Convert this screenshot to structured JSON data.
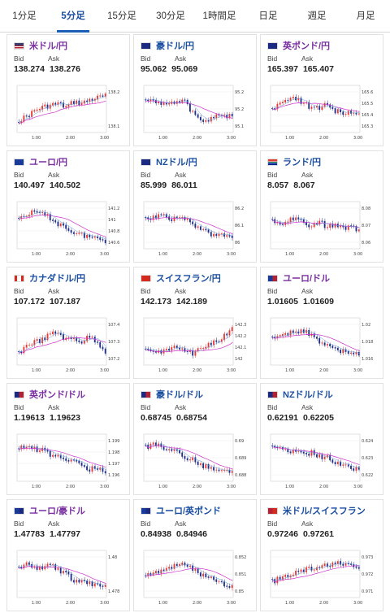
{
  "tabs": [
    {
      "label": "1分足",
      "active": false
    },
    {
      "label": "5分足",
      "active": true
    },
    {
      "label": "15分足",
      "active": false
    },
    {
      "label": "30分足",
      "active": false
    },
    {
      "label": "1時間足",
      "active": false
    },
    {
      "label": "日足",
      "active": false
    },
    {
      "label": "週足",
      "active": false
    },
    {
      "label": "月足",
      "active": false
    }
  ],
  "labels": {
    "bid": "Bid",
    "ask": "Ask"
  },
  "colors": {
    "up": "#e53935",
    "down": "#1e2e8a",
    "ma": "#cc33cc",
    "pair_blue": "#1a4ea0",
    "pair_violet": "#7a2fa0"
  },
  "cards": [
    {
      "pair": "米ドル/円",
      "flag": "us",
      "bid": "138.274",
      "ask": "138.276",
      "violet": true,
      "chart_data": {
        "type": "candlestick",
        "x_ticks": [
          "1:00",
          "2:00",
          "3:00"
        ],
        "y_ticks": [
          "138.2",
          "138.1"
        ]
      }
    },
    {
      "pair": "豪ドル/円",
      "flag": "au",
      "bid": "95.062",
      "ask": "95.069",
      "violet": false,
      "chart_data": {
        "type": "candlestick",
        "x_ticks": [
          "1:00",
          "2:00",
          "3:00"
        ],
        "y_ticks": [
          "95.2",
          "95.2",
          "95.1"
        ]
      }
    },
    {
      "pair": "英ポンド/円",
      "flag": "uk",
      "bid": "165.397",
      "ask": "165.407",
      "violet": true,
      "chart_data": {
        "type": "candlestick",
        "x_ticks": [
          "1:00",
          "2:00",
          "3:00"
        ],
        "y_ticks": [
          "165.6",
          "165.5",
          "165.4",
          "165.3"
        ]
      }
    },
    {
      "pair": "ユーロ/円",
      "flag": "eu",
      "bid": "140.497",
      "ask": "140.502",
      "violet": true,
      "chart_data": {
        "type": "candlestick",
        "x_ticks": [
          "1:00",
          "2:00",
          "3:00"
        ],
        "y_ticks": [
          "141.2",
          "141",
          "140.8",
          "140.6"
        ]
      }
    },
    {
      "pair": "NZドル/円",
      "flag": "nz",
      "bid": "85.999",
      "ask": "86.011",
      "violet": false,
      "chart_data": {
        "type": "candlestick",
        "x_ticks": [
          "1:00",
          "2:00",
          "3:00"
        ],
        "y_ticks": [
          "86.2",
          "86.1",
          "86"
        ]
      }
    },
    {
      "pair": "ランド/円",
      "flag": "za",
      "bid": "8.057",
      "ask": "8.067",
      "violet": false,
      "chart_data": {
        "type": "candlestick",
        "x_ticks": [
          "1:00",
          "2:00",
          "3:00"
        ],
        "y_ticks": [
          "8.08",
          "8.07",
          "8.06"
        ]
      }
    },
    {
      "pair": "カナダドル/円",
      "flag": "ca",
      "bid": "107.172",
      "ask": "107.187",
      "violet": false,
      "chart_data": {
        "type": "candlestick",
        "x_ticks": [
          "1:00",
          "2:00",
          "3:00"
        ],
        "y_ticks": [
          "107.4",
          "107.3",
          "107.2"
        ]
      }
    },
    {
      "pair": "スイスフラン/円",
      "flag": "ch",
      "bid": "142.173",
      "ask": "142.189",
      "violet": false,
      "chart_data": {
        "type": "candlestick",
        "x_ticks": [
          "1:00",
          "2:00",
          "3:00"
        ],
        "y_ticks": [
          "142.3",
          "142.2",
          "142.1",
          "142"
        ]
      }
    },
    {
      "pair": "ユーロ/ドル",
      "flag": "eu-us",
      "bid": "1.01605",
      "ask": "1.01609",
      "violet": true,
      "chart_data": {
        "type": "candlestick",
        "x_ticks": [
          "1:00",
          "2:00",
          "3:00"
        ],
        "y_ticks": [
          "1.02",
          "1.018",
          "1.016"
        ]
      }
    },
    {
      "pair": "英ポンド/ドル",
      "flag": "uk-us",
      "bid": "1.19613",
      "ask": "1.19623",
      "violet": true,
      "chart_data": {
        "type": "candlestick",
        "x_ticks": [
          "1:00",
          "2:00",
          "3:00"
        ],
        "y_ticks": [
          "1.199",
          "1.198",
          "1.197",
          "1.196"
        ]
      }
    },
    {
      "pair": "豪ドル/ドル",
      "flag": "au-us",
      "bid": "0.68745",
      "ask": "0.68754",
      "violet": false,
      "chart_data": {
        "type": "candlestick",
        "x_ticks": [
          "1:00",
          "2:00",
          "3:00"
        ],
        "y_ticks": [
          "0.69",
          "0.689",
          "0.688"
        ]
      }
    },
    {
      "pair": "NZドル/ドル",
      "flag": "nz-us",
      "bid": "0.62191",
      "ask": "0.62205",
      "violet": false,
      "chart_data": {
        "type": "candlestick",
        "x_ticks": [
          "1:00",
          "2:00",
          "3:00"
        ],
        "y_ticks": [
          "0.624",
          "0.623",
          "0.622"
        ]
      }
    },
    {
      "pair": "ユーロ/豪ドル",
      "flag": "eu-au",
      "bid": "1.47783",
      "ask": "1.47797",
      "violet": true,
      "chart_data": {
        "type": "candlestick",
        "x_ticks": [
          "1:00",
          "2:00",
          "3:00"
        ],
        "y_ticks": [
          "1.48",
          "1.478"
        ]
      }
    },
    {
      "pair": "ユーロ/英ポンド",
      "flag": "eu-uk",
      "bid": "0.84938",
      "ask": "0.84946",
      "violet": false,
      "chart_data": {
        "type": "candlestick",
        "x_ticks": [
          "1:00",
          "2:00",
          "3:00"
        ],
        "y_ticks": [
          "0.852",
          "0.851",
          "0.85"
        ]
      }
    },
    {
      "pair": "米ドル/スイスフラン",
      "flag": "us-ch",
      "bid": "0.97246",
      "ask": "0.97261",
      "violet": false,
      "chart_data": {
        "type": "candlestick",
        "x_ticks": [
          "1:00",
          "2:00",
          "3:00"
        ],
        "y_ticks": [
          "0.973",
          "0.972",
          "0.971"
        ]
      }
    }
  ]
}
